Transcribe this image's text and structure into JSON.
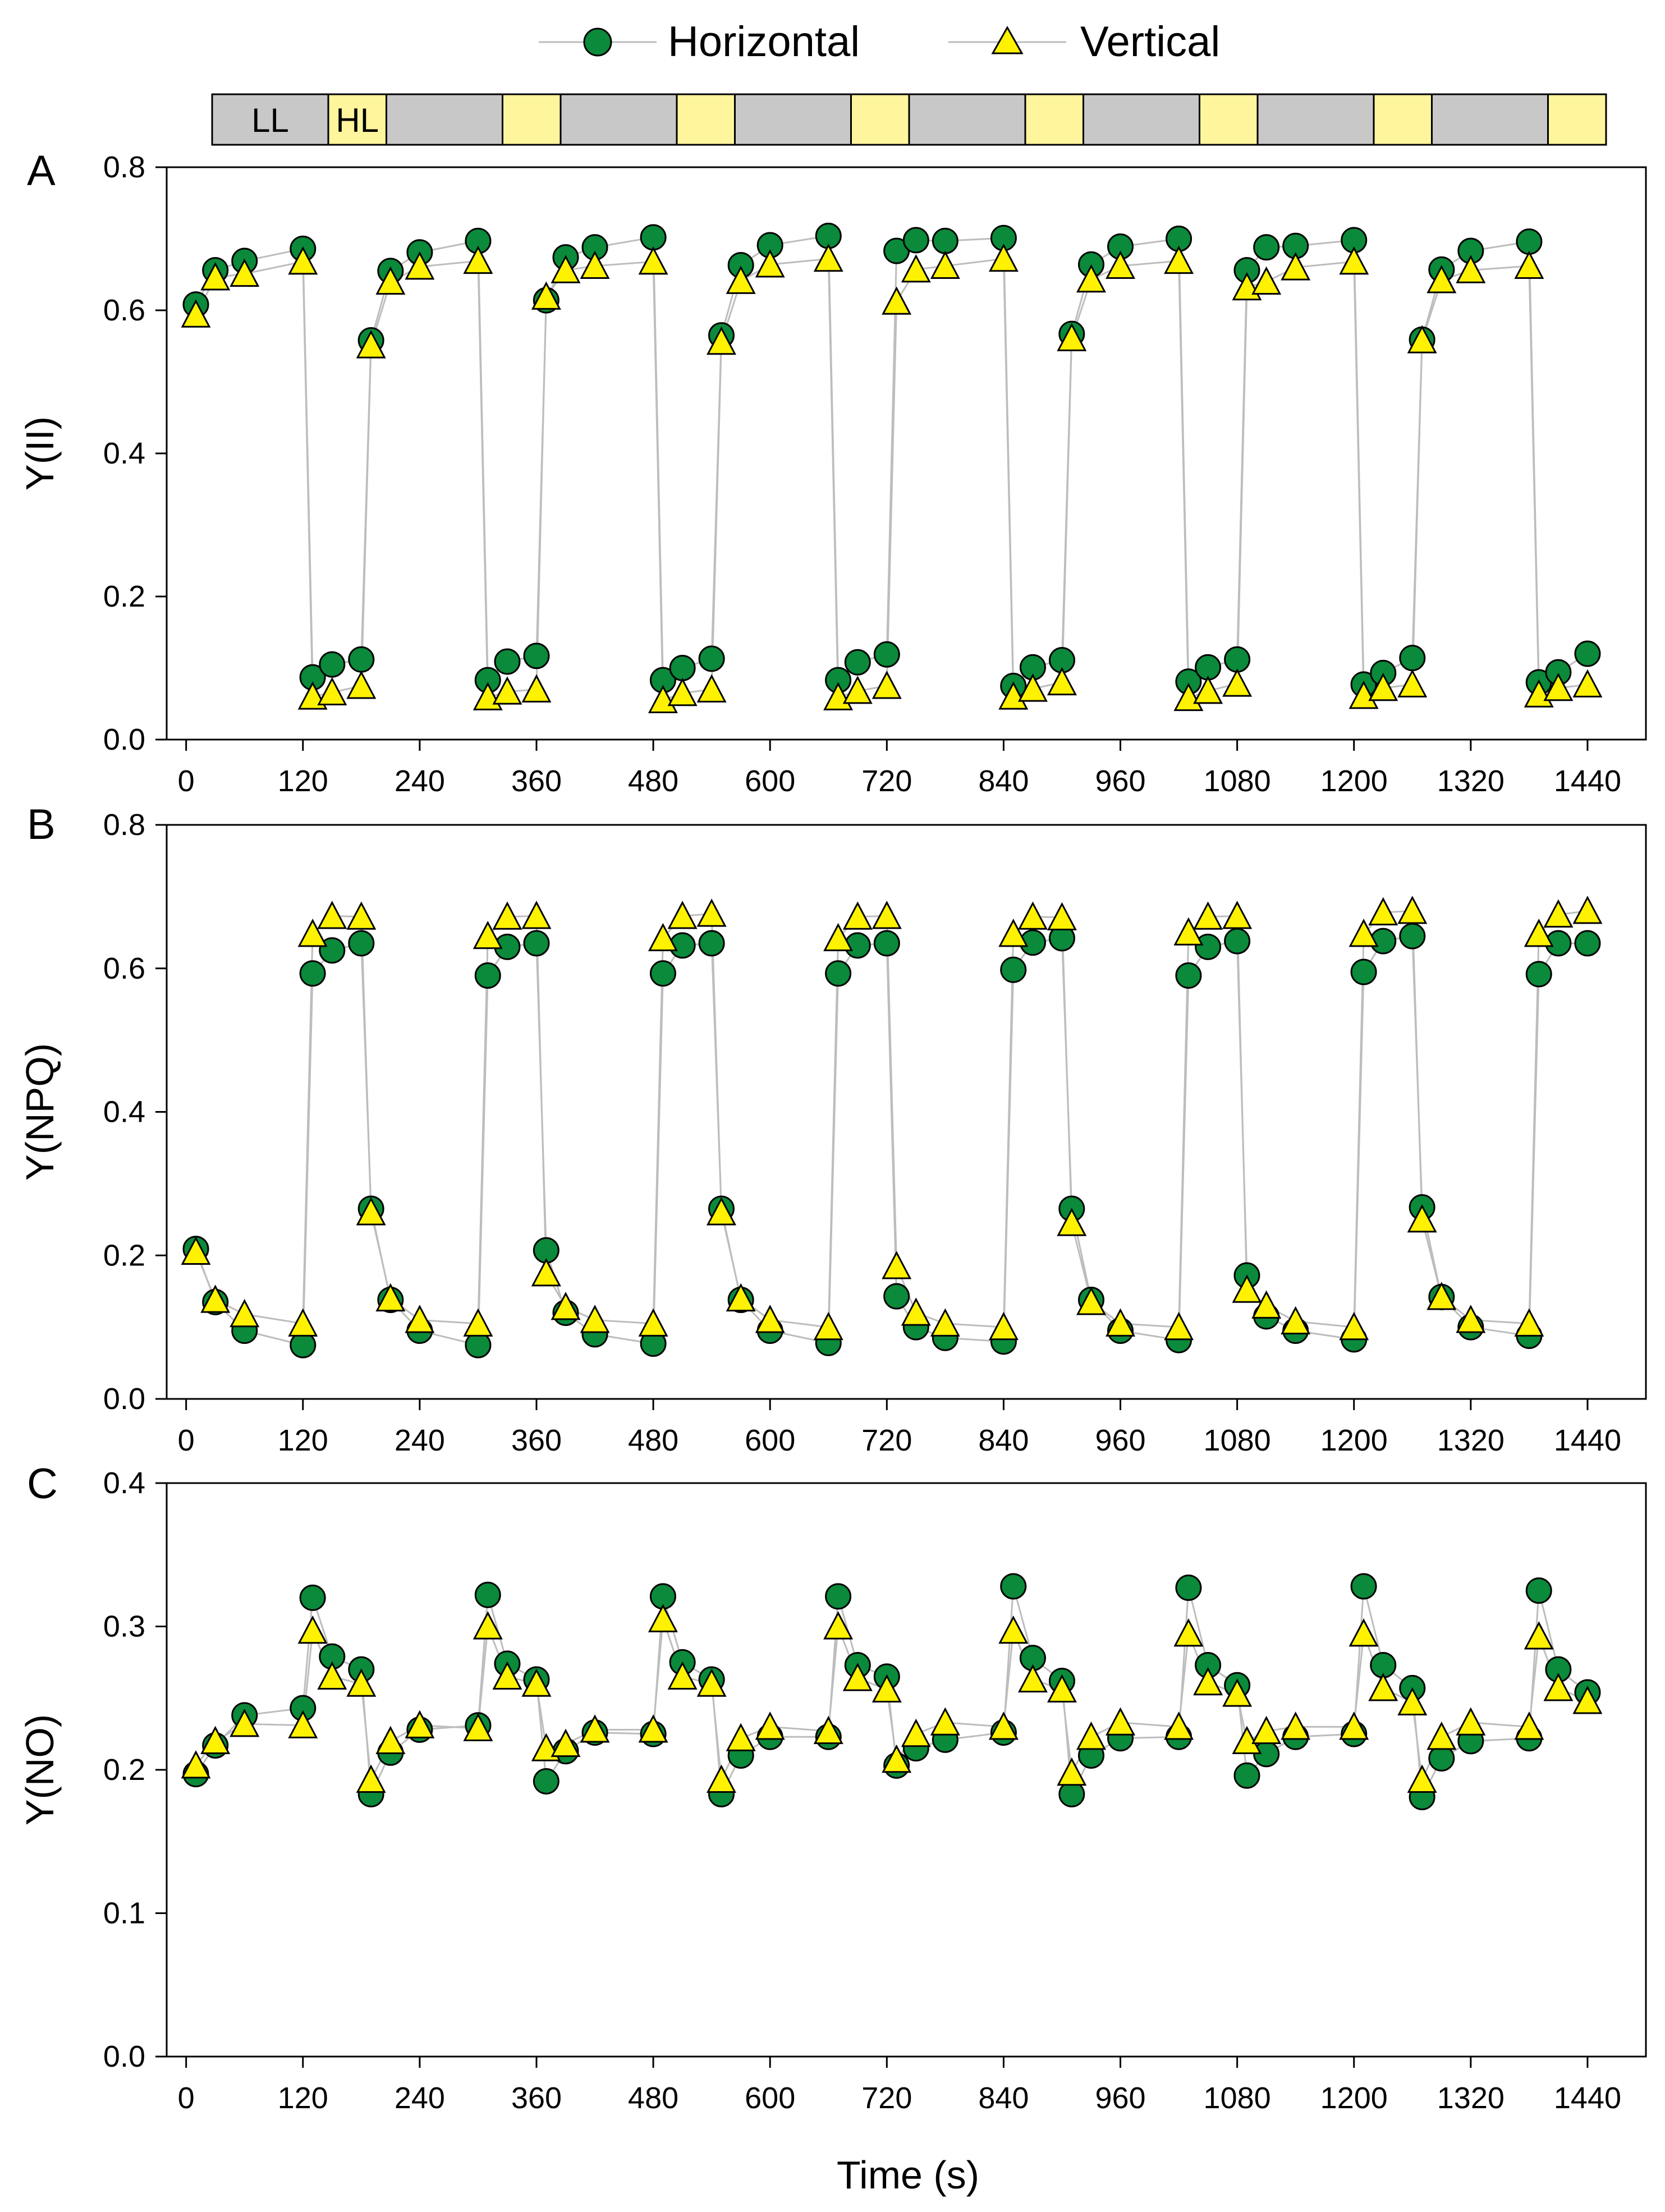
{
  "legend": {
    "horizontal": "Horizontal",
    "vertical": "Vertical"
  },
  "colors": {
    "horizontal": "#0a8a3a",
    "vertical": "#fff200",
    "bar_dark": "#c8c8c8",
    "bar_light": "#fff59d",
    "line": "#bdbdbd"
  },
  "light_bar": {
    "labels": {
      "ll": "LL",
      "hl": "HL"
    },
    "segments": [
      {
        "type": "LL",
        "start": 0,
        "end": 120
      },
      {
        "type": "HL",
        "start": 120,
        "end": 180
      },
      {
        "type": "LL",
        "start": 180,
        "end": 300
      },
      {
        "type": "HL",
        "start": 300,
        "end": 360
      },
      {
        "type": "LL",
        "start": 360,
        "end": 480
      },
      {
        "type": "HL",
        "start": 480,
        "end": 540
      },
      {
        "type": "LL",
        "start": 540,
        "end": 660
      },
      {
        "type": "HL",
        "start": 660,
        "end": 720
      },
      {
        "type": "LL",
        "start": 720,
        "end": 840
      },
      {
        "type": "HL",
        "start": 840,
        "end": 900
      },
      {
        "type": "LL",
        "start": 900,
        "end": 1020
      },
      {
        "type": "HL",
        "start": 1020,
        "end": 1080
      },
      {
        "type": "LL",
        "start": 1080,
        "end": 1200
      },
      {
        "type": "HL",
        "start": 1200,
        "end": 1260
      },
      {
        "type": "LL",
        "start": 1260,
        "end": 1380
      },
      {
        "type": "HL",
        "start": 1380,
        "end": 1440
      }
    ]
  },
  "x_axis_title": "Time (s)",
  "chart_data": [
    {
      "type": "scatter",
      "panel": "A",
      "ylabel": "Y(II)",
      "xlim": [
        -20,
        1500
      ],
      "ylim": [
        0,
        0.8
      ],
      "xticks": [
        0,
        120,
        240,
        360,
        480,
        600,
        720,
        840,
        960,
        1080,
        1200,
        1320,
        1440
      ],
      "yticks": [
        0.0,
        0.2,
        0.4,
        0.6,
        0.8
      ],
      "series": [
        {
          "name": "Horizontal",
          "marker": "circle",
          "x": [
            10,
            30,
            60,
            120,
            130,
            150,
            180,
            190,
            210,
            240,
            300,
            310,
            330,
            360,
            370,
            390,
            420,
            480,
            490,
            510,
            540,
            550,
            570,
            600,
            660,
            670,
            690,
            720,
            730,
            750,
            780,
            840,
            850,
            870,
            900,
            910,
            930,
            960,
            1020,
            1030,
            1050,
            1080,
            1090,
            1110,
            1140,
            1200,
            1210,
            1230,
            1260,
            1270,
            1290,
            1320,
            1380,
            1390,
            1410,
            1440
          ],
          "values": [
            0.608,
            0.656,
            0.669,
            0.686,
            0.087,
            0.105,
            0.112,
            0.558,
            0.655,
            0.681,
            0.697,
            0.083,
            0.109,
            0.117,
            0.614,
            0.674,
            0.688,
            0.702,
            0.083,
            0.1,
            0.113,
            0.565,
            0.663,
            0.691,
            0.704,
            0.083,
            0.108,
            0.119,
            0.683,
            0.698,
            0.697,
            0.701,
            0.075,
            0.101,
            0.111,
            0.567,
            0.664,
            0.689,
            0.7,
            0.081,
            0.101,
            0.112,
            0.656,
            0.688,
            0.69,
            0.698,
            0.077,
            0.093,
            0.114,
            0.559,
            0.657,
            0.683,
            0.696,
            0.08,
            0.094,
            0.12
          ]
        },
        {
          "name": "Vertical",
          "marker": "triangle",
          "x": [
            10,
            30,
            60,
            120,
            130,
            150,
            180,
            190,
            210,
            240,
            300,
            310,
            330,
            360,
            370,
            390,
            420,
            480,
            490,
            510,
            540,
            550,
            570,
            600,
            660,
            670,
            690,
            720,
            730,
            750,
            780,
            840,
            850,
            870,
            900,
            910,
            930,
            960,
            1020,
            1030,
            1050,
            1080,
            1090,
            1110,
            1140,
            1200,
            1210,
            1230,
            1260,
            1270,
            1290,
            1320,
            1380,
            1390,
            1410,
            1440
          ],
          "values": [
            0.594,
            0.646,
            0.651,
            0.668,
            0.06,
            0.066,
            0.075,
            0.551,
            0.64,
            0.661,
            0.669,
            0.059,
            0.067,
            0.07,
            0.619,
            0.656,
            0.662,
            0.668,
            0.055,
            0.065,
            0.07,
            0.556,
            0.641,
            0.664,
            0.672,
            0.059,
            0.068,
            0.075,
            0.612,
            0.657,
            0.662,
            0.672,
            0.06,
            0.071,
            0.08,
            0.561,
            0.643,
            0.662,
            0.669,
            0.058,
            0.068,
            0.078,
            0.632,
            0.64,
            0.66,
            0.668,
            0.061,
            0.072,
            0.077,
            0.558,
            0.642,
            0.656,
            0.662,
            0.063,
            0.072,
            0.077
          ]
        }
      ]
    },
    {
      "type": "scatter",
      "panel": "B",
      "ylabel": "Y(NPQ)",
      "xlim": [
        -20,
        1500
      ],
      "ylim": [
        0,
        0.8
      ],
      "xticks": [
        0,
        120,
        240,
        360,
        480,
        600,
        720,
        840,
        960,
        1080,
        1200,
        1320,
        1440
      ],
      "yticks": [
        0.0,
        0.2,
        0.4,
        0.6,
        0.8
      ],
      "series": [
        {
          "name": "Horizontal",
          "marker": "circle",
          "x": [
            10,
            30,
            60,
            120,
            130,
            150,
            180,
            190,
            210,
            240,
            300,
            310,
            330,
            360,
            370,
            390,
            420,
            480,
            490,
            510,
            540,
            550,
            570,
            600,
            660,
            670,
            690,
            720,
            730,
            750,
            780,
            840,
            850,
            870,
            900,
            910,
            930,
            960,
            1020,
            1030,
            1050,
            1080,
            1090,
            1110,
            1140,
            1200,
            1210,
            1230,
            1260,
            1270,
            1290,
            1320,
            1380,
            1390,
            1410,
            1440
          ],
          "values": [
            0.209,
            0.135,
            0.095,
            0.075,
            0.593,
            0.625,
            0.635,
            0.265,
            0.138,
            0.095,
            0.075,
            0.59,
            0.63,
            0.635,
            0.207,
            0.12,
            0.09,
            0.077,
            0.593,
            0.632,
            0.635,
            0.265,
            0.138,
            0.095,
            0.078,
            0.593,
            0.632,
            0.635,
            0.143,
            0.1,
            0.085,
            0.08,
            0.598,
            0.636,
            0.642,
            0.265,
            0.138,
            0.095,
            0.082,
            0.59,
            0.63,
            0.638,
            0.172,
            0.115,
            0.095,
            0.083,
            0.595,
            0.638,
            0.645,
            0.267,
            0.142,
            0.1,
            0.088,
            0.592,
            0.635,
            0.635
          ]
        },
        {
          "name": "Vertical",
          "marker": "triangle",
          "x": [
            10,
            30,
            60,
            120,
            130,
            150,
            180,
            190,
            210,
            240,
            300,
            310,
            330,
            360,
            370,
            390,
            420,
            480,
            490,
            510,
            540,
            550,
            570,
            600,
            660,
            670,
            690,
            720,
            730,
            750,
            780,
            840,
            850,
            870,
            900,
            910,
            930,
            960,
            1020,
            1030,
            1050,
            1080,
            1090,
            1110,
            1140,
            1200,
            1210,
            1230,
            1260,
            1270,
            1290,
            1320,
            1380,
            1390,
            1410,
            1440
          ],
          "values": [
            0.205,
            0.138,
            0.118,
            0.105,
            0.648,
            0.673,
            0.672,
            0.26,
            0.14,
            0.11,
            0.105,
            0.645,
            0.672,
            0.673,
            0.175,
            0.128,
            0.11,
            0.105,
            0.642,
            0.673,
            0.676,
            0.26,
            0.14,
            0.11,
            0.1,
            0.642,
            0.672,
            0.673,
            0.185,
            0.12,
            0.105,
            0.1,
            0.648,
            0.672,
            0.671,
            0.245,
            0.135,
            0.105,
            0.1,
            0.65,
            0.672,
            0.673,
            0.152,
            0.13,
            0.108,
            0.1,
            0.648,
            0.678,
            0.68,
            0.25,
            0.142,
            0.11,
            0.105,
            0.648,
            0.675,
            0.68
          ]
        }
      ]
    },
    {
      "type": "scatter",
      "panel": "C",
      "ylabel": "Y(NO)",
      "xlim": [
        -20,
        1500
      ],
      "ylim": [
        0,
        0.4
      ],
      "xticks": [
        0,
        120,
        240,
        360,
        480,
        600,
        720,
        840,
        960,
        1080,
        1200,
        1320,
        1440
      ],
      "yticks": [
        0.0,
        0.1,
        0.2,
        0.3,
        0.4
      ],
      "series": [
        {
          "name": "Horizontal",
          "marker": "circle",
          "x": [
            10,
            30,
            60,
            120,
            130,
            150,
            180,
            190,
            210,
            240,
            300,
            310,
            330,
            360,
            370,
            390,
            420,
            480,
            490,
            510,
            540,
            550,
            570,
            600,
            660,
            670,
            690,
            720,
            730,
            750,
            780,
            840,
            850,
            870,
            900,
            910,
            930,
            960,
            1020,
            1030,
            1050,
            1080,
            1090,
            1110,
            1140,
            1200,
            1210,
            1230,
            1260,
            1270,
            1290,
            1320,
            1380,
            1390,
            1410,
            1440
          ],
          "values": [
            0.197,
            0.217,
            0.238,
            0.243,
            0.32,
            0.279,
            0.27,
            0.183,
            0.212,
            0.228,
            0.231,
            0.322,
            0.274,
            0.263,
            0.192,
            0.213,
            0.226,
            0.225,
            0.321,
            0.275,
            0.263,
            0.183,
            0.21,
            0.223,
            0.223,
            0.321,
            0.273,
            0.265,
            0.203,
            0.215,
            0.221,
            0.226,
            0.328,
            0.278,
            0.262,
            0.183,
            0.21,
            0.222,
            0.223,
            0.327,
            0.273,
            0.259,
            0.196,
            0.211,
            0.223,
            0.225,
            0.328,
            0.273,
            0.257,
            0.181,
            0.208,
            0.22,
            0.222,
            0.325,
            0.27,
            0.254
          ]
        },
        {
          "name": "Vertical",
          "marker": "triangle",
          "x": [
            10,
            30,
            60,
            120,
            130,
            150,
            180,
            190,
            210,
            240,
            300,
            310,
            330,
            360,
            370,
            390,
            420,
            480,
            490,
            510,
            540,
            550,
            570,
            600,
            660,
            670,
            690,
            720,
            730,
            750,
            780,
            840,
            850,
            870,
            900,
            910,
            930,
            960,
            1020,
            1030,
            1050,
            1080,
            1090,
            1110,
            1140,
            1200,
            1210,
            1230,
            1260,
            1270,
            1290,
            1320,
            1380,
            1390,
            1410,
            1440
          ],
          "values": [
            0.203,
            0.22,
            0.232,
            0.231,
            0.297,
            0.265,
            0.26,
            0.193,
            0.22,
            0.231,
            0.229,
            0.3,
            0.265,
            0.26,
            0.215,
            0.218,
            0.228,
            0.228,
            0.305,
            0.265,
            0.26,
            0.193,
            0.222,
            0.23,
            0.227,
            0.3,
            0.264,
            0.256,
            0.207,
            0.225,
            0.233,
            0.23,
            0.297,
            0.263,
            0.256,
            0.198,
            0.223,
            0.233,
            0.23,
            0.295,
            0.261,
            0.253,
            0.22,
            0.227,
            0.23,
            0.23,
            0.295,
            0.257,
            0.247,
            0.193,
            0.223,
            0.233,
            0.23,
            0.293,
            0.257,
            0.248
          ]
        }
      ]
    }
  ]
}
